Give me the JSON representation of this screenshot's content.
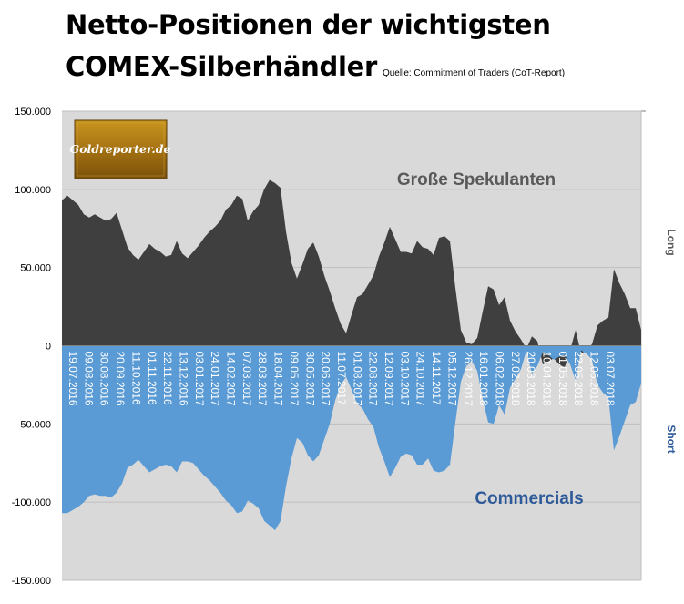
{
  "header": {
    "title_line1": "Netto-Positionen der wichtigsten",
    "title_line2": "COMEX-Silberhändler",
    "source": "Quelle: Commitment of Traders (CoT-Report)"
  },
  "logo": {
    "text": "Goldreporter.de"
  },
  "chart_data": {
    "type": "area",
    "ylim": [
      -150000,
      150000
    ],
    "yticks": [
      "150.000",
      "100.000",
      "50.000",
      "0",
      "-50.000",
      "-100.000",
      "-150.000"
    ],
    "ytick_values": [
      150000,
      100000,
      50000,
      0,
      -50000,
      -100000,
      -150000
    ],
    "right_labels": {
      "long": "Long",
      "short": "Short"
    },
    "grid": true,
    "background": "#d9d9d9",
    "x_labels": [
      "19.07.2016",
      "09.08.2016",
      "30.08.2016",
      "20.09.2016",
      "11.10.2016",
      "01.11.2016",
      "22.11.2016",
      "13.12.2016",
      "03.01.2017",
      "24.01.2017",
      "14.02.2017",
      "07.03.2017",
      "28.03.2017",
      "18.04.2017",
      "09.05.2017",
      "30.05.2017",
      "20.06.2017",
      "11.07.2017",
      "01.08.2017",
      "22.08.2017",
      "12.09.2017",
      "03.10.2017",
      "24.10.2017",
      "14.11.2017",
      "05.12.2017",
      "26.12.2017",
      "16.01.2018",
      "06.02.2018",
      "27.02.2018",
      "20.03.2018",
      "10.04.2018",
      "01.05.2018",
      "22.05.2018",
      "12.06.2018",
      "03.07.2018"
    ],
    "series": [
      {
        "name": "Große Spekulanten",
        "color": "#3f3f3f",
        "values": [
          93000,
          96000,
          93000,
          90000,
          84000,
          82000,
          84000,
          82000,
          80000,
          81000,
          85000,
          74000,
          63000,
          58000,
          55000,
          60000,
          65000,
          62000,
          60000,
          57000,
          58000,
          67000,
          59000,
          56000,
          60000,
          64000,
          69000,
          73000,
          76000,
          80000,
          87000,
          90000,
          96000,
          94000,
          80000,
          86000,
          90000,
          100000,
          106000,
          104000,
          101000,
          73000,
          53000,
          43000,
          52000,
          62000,
          66000,
          57000,
          45000,
          35000,
          24000,
          14000,
          8000,
          20000,
          31000,
          33000,
          39000,
          45000,
          57000,
          66000,
          76000,
          68000,
          60000,
          60000,
          59000,
          67000,
          63000,
          62000,
          58000,
          69000,
          70000,
          67000,
          37000,
          10000,
          2000,
          1000,
          5000,
          22000,
          38000,
          36000,
          26000,
          31000,
          16000,
          9000,
          4000,
          -2000,
          6000,
          3000,
          -12000,
          -10000,
          -8000,
          -12000,
          -14000,
          -3000,
          10000,
          -5000,
          -3000,
          1000,
          13000,
          16000,
          18000,
          49000,
          40000,
          33000,
          24000,
          24000,
          10000
        ]
      },
      {
        "name": "Commercials",
        "color": "#5b9bd5",
        "values": [
          -107000,
          -107000,
          -105000,
          -103000,
          -100000,
          -96000,
          -95000,
          -96000,
          -96000,
          -97000,
          -94000,
          -88000,
          -78000,
          -76000,
          -73000,
          -77000,
          -81000,
          -79000,
          -77000,
          -76000,
          -77000,
          -81000,
          -74000,
          -74000,
          -75000,
          -79000,
          -83000,
          -86000,
          -90000,
          -94000,
          -99000,
          -102000,
          -107000,
          -106000,
          -99000,
          -101000,
          -104000,
          -112000,
          -115000,
          -118000,
          -112000,
          -90000,
          -72000,
          -59000,
          -62000,
          -70000,
          -74000,
          -70000,
          -60000,
          -50000,
          -35000,
          -25000,
          -20000,
          -28000,
          -37000,
          -40000,
          -47000,
          -52000,
          -65000,
          -74000,
          -84000,
          -78000,
          -71000,
          -69000,
          -70000,
          -76000,
          -76000,
          -72000,
          -80000,
          -81000,
          -80000,
          -76000,
          -49000,
          -23000,
          -13000,
          -10000,
          -16000,
          -34000,
          -49000,
          -50000,
          -38000,
          -44000,
          -27000,
          -21000,
          -15000,
          -3000,
          -18000,
          -13000,
          -4000,
          -6000,
          -9000,
          -7000,
          -6000,
          -12000,
          -22000,
          -3000,
          -5000,
          -9000,
          -25000,
          -30000,
          -33000,
          -67000,
          -58000,
          -48000,
          -38000,
          -36000,
          -24000
        ]
      }
    ],
    "annotations": [
      {
        "text": "Große Spekulanten",
        "color": "#595959"
      },
      {
        "text": "Commercials",
        "color": "#2e5a9a"
      }
    ]
  }
}
